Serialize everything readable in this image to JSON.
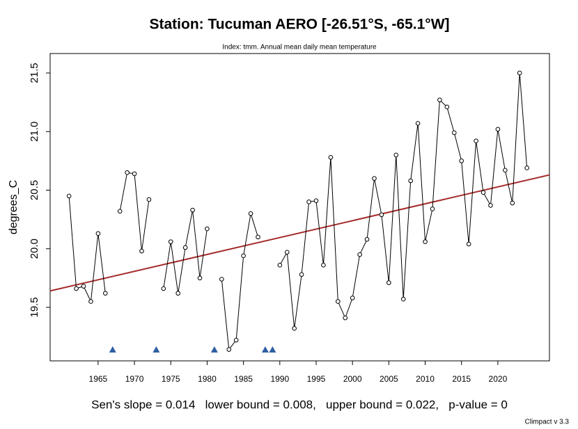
{
  "chart_data": {
    "type": "line",
    "title": "Station: Tucuman AERO  [-26.51°S, -65.1°W]",
    "subtitle": "Index: tmm. Annual mean daily mean temperature",
    "y_label": "degrees_C",
    "footer": "Sen's slope = 0.014   lower bound = 0.008,   upper bound = 0.022,   p-value = 0",
    "version": "Climpact v 3.3",
    "x": [
      1961,
      1962,
      1963,
      1964,
      1965,
      1966,
      1967,
      1968,
      1969,
      1970,
      1971,
      1972,
      1973,
      1974,
      1975,
      1976,
      1977,
      1978,
      1979,
      1980,
      1981,
      1982,
      1983,
      1984,
      1985,
      1986,
      1987,
      1988,
      1989,
      1990,
      1991,
      1992,
      1993,
      1994,
      1995,
      1996,
      1997,
      1998,
      1999,
      2000,
      2001,
      2002,
      2003,
      2004,
      2005,
      2006,
      2007,
      2008,
      2009,
      2010,
      2011,
      2012,
      2013,
      2014,
      2015,
      2016,
      2017,
      2018,
      2019,
      2020,
      2021,
      2022,
      2023,
      2024
    ],
    "series": [
      {
        "name": "tmm",
        "color": "#000000",
        "values": [
          20.45,
          19.66,
          19.68,
          19.55,
          20.13,
          19.62,
          null,
          20.32,
          20.65,
          20.64,
          19.98,
          20.42,
          null,
          19.66,
          20.06,
          19.62,
          20.01,
          20.33,
          19.75,
          20.17,
          null,
          19.74,
          19.14,
          19.22,
          19.94,
          20.3,
          20.1,
          null,
          null,
          19.86,
          19.97,
          19.32,
          19.78,
          20.4,
          20.41,
          19.86,
          20.78,
          19.55,
          19.41,
          19.58,
          19.95,
          20.08,
          20.6,
          20.29,
          19.71,
          20.8,
          19.57,
          20.58,
          21.07,
          20.06,
          20.34,
          21.27,
          21.21,
          20.99,
          20.75,
          20.04,
          20.92,
          20.48,
          20.37,
          21.02,
          20.67,
          20.39,
          21.5,
          20.69
        ]
      }
    ],
    "trend_line": {
      "color": "#a52a2a",
      "x": [
        1958.4,
        2027.1
      ],
      "values": [
        19.64,
        20.63
      ]
    },
    "missing_years": {
      "color": "#2e5fa3",
      "x": [
        1967,
        1973,
        1981,
        1988,
        1989
      ]
    },
    "xlim": [
      1958.4,
      2027.1
    ],
    "ylim": [
      19.043,
      21.666
    ],
    "xticks": [
      1965,
      1970,
      1975,
      1980,
      1985,
      1990,
      1995,
      2000,
      2005,
      2010,
      2015,
      2020
    ],
    "yticks": [
      19.5,
      {
        "value": 20,
        "label": "20.0"
      },
      20.5,
      {
        "value": 21,
        "label": "21.0"
      },
      21.5
    ]
  }
}
